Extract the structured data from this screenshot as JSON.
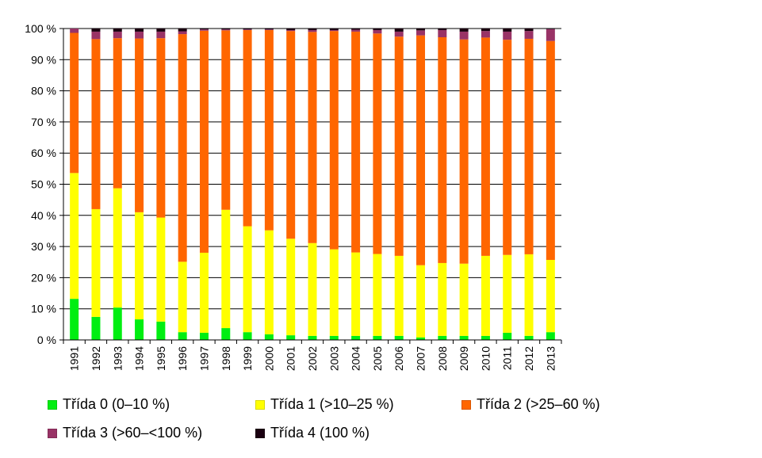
{
  "chart_data": {
    "type": "bar",
    "stacked": true,
    "percent_stacked": true,
    "categories": [
      "1991",
      "1992",
      "1993",
      "1994",
      "1995",
      "1996",
      "1997",
      "1998",
      "1999",
      "2000",
      "2001",
      "2002",
      "2003",
      "2004",
      "2005",
      "2006",
      "2007",
      "2008",
      "2009",
      "2010",
      "2011",
      "2012",
      "2013"
    ],
    "series": [
      {
        "name": "Třída 0 (0–10 %)",
        "color": "#00ee11",
        "values": [
          13.2,
          7.4,
          10.4,
          6.6,
          5.9,
          2.5,
          2.3,
          3.8,
          2.5,
          1.8,
          1.5,
          1.3,
          1.3,
          1.3,
          1.3,
          1.3,
          0.8,
          1.3,
          1.3,
          1.3,
          2.3,
          1.3,
          2.5
        ]
      },
      {
        "name": "Třída 1 (>10–25 %)",
        "color": "#ffff00",
        "values": [
          40.4,
          34.6,
          38.3,
          34.4,
          33.4,
          22.6,
          25.7,
          38.0,
          34.0,
          33.4,
          31.0,
          29.8,
          27.8,
          26.8,
          26.3,
          25.7,
          23.2,
          23.4,
          23.2,
          25.7,
          25.0,
          26.2,
          23.2
        ]
      },
      {
        "name": "Třída 2 (>25–60 %)",
        "color": "#ff6600",
        "values": [
          45.0,
          54.6,
          48.2,
          55.8,
          57.6,
          73.1,
          71.3,
          57.6,
          63.0,
          64.3,
          66.7,
          67.8,
          70.1,
          70.9,
          70.8,
          70.4,
          73.8,
          72.5,
          72.0,
          70.1,
          69.1,
          69.2,
          70.3
        ]
      },
      {
        "name": "Třída 3 (>60–<100 %)",
        "color": "#993366",
        "values": [
          1.4,
          2.4,
          2.1,
          2.2,
          2.1,
          0.9,
          0.4,
          0.3,
          0.2,
          0.2,
          0.3,
          0.6,
          0.3,
          0.6,
          1.1,
          1.6,
          1.6,
          2.3,
          2.5,
          2.1,
          2.6,
          2.5,
          3.8
        ]
      },
      {
        "name": "Třída 4 (100 %)",
        "color": "#1a0010",
        "values": [
          0.0,
          1.0,
          1.0,
          1.0,
          1.0,
          0.9,
          0.3,
          0.3,
          0.3,
          0.3,
          0.5,
          0.5,
          0.5,
          0.4,
          0.5,
          1.0,
          0.6,
          0.5,
          1.0,
          0.8,
          1.0,
          0.8,
          0.2
        ]
      }
    ],
    "ylim": [
      0,
      100
    ],
    "yticks": [
      "0 %",
      "10 %",
      "20 %",
      "30 %",
      "40 %",
      "50 %",
      "60 %",
      "70 %",
      "80 %",
      "90 %",
      "100 %"
    ],
    "xlabel": "",
    "ylabel": "",
    "title": "",
    "grid": true,
    "legend_position": "bottom"
  }
}
